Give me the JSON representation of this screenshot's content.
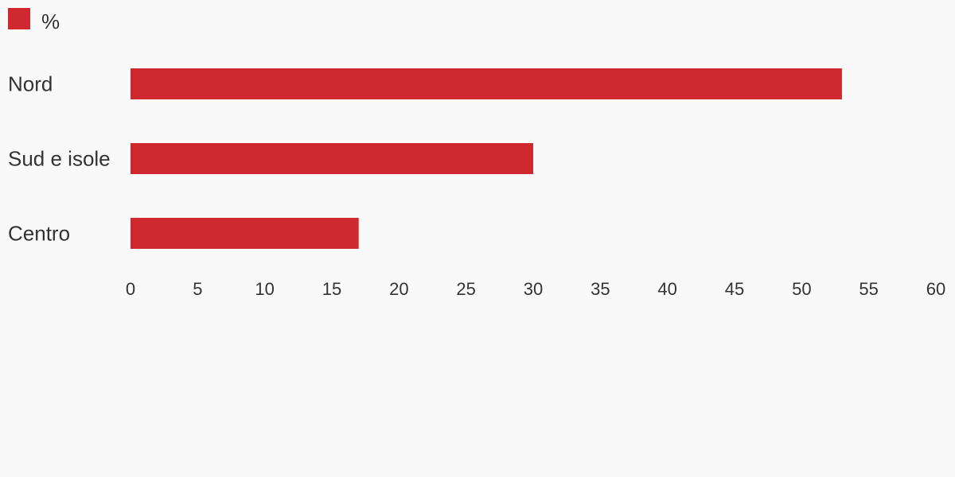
{
  "chart_data": {
    "type": "bar",
    "orientation": "horizontal",
    "categories": [
      "Nord",
      "Sud e isole",
      "Centro"
    ],
    "series": [
      {
        "name": "%",
        "values": [
          53,
          30,
          17
        ]
      }
    ],
    "xlim": [
      0,
      60
    ],
    "x_ticks": [
      "0",
      "5",
      "10",
      "15",
      "20",
      "25",
      "30",
      "35",
      "40",
      "45",
      "50",
      "55",
      "60"
    ],
    "title": "",
    "xlabel": "",
    "ylabel": "",
    "grid": false,
    "legend_position": "top-left",
    "bar_color": "#d0282f"
  }
}
